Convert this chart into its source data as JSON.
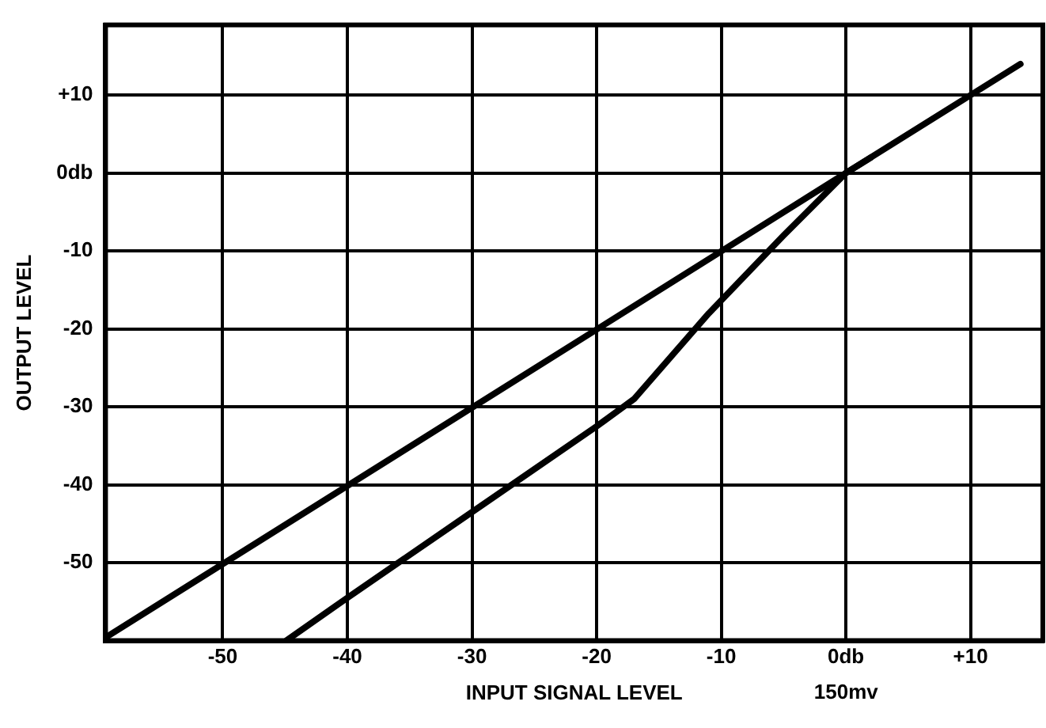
{
  "chart_data": {
    "type": "line",
    "xlabel": "INPUT SIGNAL LEVEL",
    "ylabel": "OUTPUT LEVEL",
    "annotations": [
      "150mv"
    ],
    "xlim": [
      -59.4,
      15.8
    ],
    "ylim": [
      -60,
      19
    ],
    "xticks": [
      -50,
      -40,
      -30,
      -20,
      -10,
      {
        "value": 0,
        "label": "0db"
      },
      {
        "value": 10,
        "label": "+10"
      }
    ],
    "yticks": [
      -50,
      -40,
      -30,
      -20,
      -10,
      {
        "value": 0,
        "label": "0db"
      },
      {
        "value": 10,
        "label": "+10"
      }
    ],
    "grid": true,
    "legend": false,
    "marker": "none",
    "line_style": "solid",
    "series": [
      {
        "color": "#000000",
        "x": [
          -59.4,
          0,
          14
        ],
        "values": [
          -59.6,
          0,
          14
        ]
      },
      {
        "color": "#000000",
        "x": [
          -44.9,
          -40,
          -30,
          -20,
          -17,
          -14,
          -11,
          -5,
          0,
          2
        ],
        "values": [
          -60,
          -54.5,
          -43.5,
          -32.5,
          -29,
          -23.5,
          -18,
          -8,
          0,
          2
        ]
      }
    ]
  }
}
